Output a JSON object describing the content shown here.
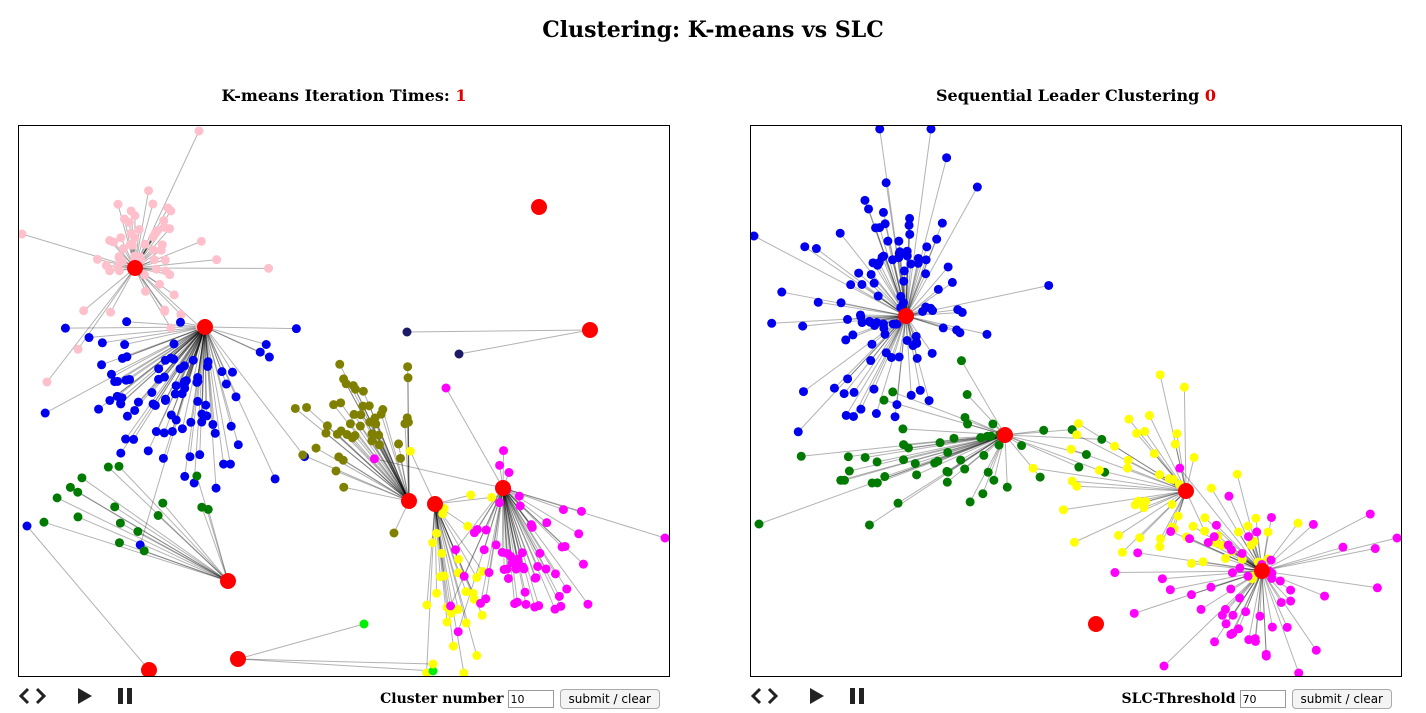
{
  "page_title": "Clustering: K-means vs SLC",
  "left": {
    "title_label": "K-means Iteration Times: ",
    "title_count": "1",
    "form_label": "Cluster number",
    "input_value": "10",
    "button_label": "submit / clear",
    "icons": [
      "code-arrows-icon",
      "play-icon",
      "pause-icon"
    ]
  },
  "right": {
    "title_label": "Sequential Leader Clustering ",
    "title_count": "0",
    "form_label": "SLC-Threshold",
    "input_value": "70",
    "button_label": "submit / clear",
    "icons": [
      "code-arrows-icon",
      "play-icon",
      "pause-icon"
    ]
  },
  "colors": {
    "centroid": "#ff0000",
    "pink": "#ffc0cb",
    "blue": "#0000ee",
    "green": "#007a00",
    "olive": "#808000",
    "magenta": "#ff00ff",
    "yellow": "#ffff00",
    "navy": "#1a1a66",
    "lime": "#00ee00",
    "title_count": "#e00000"
  }
}
